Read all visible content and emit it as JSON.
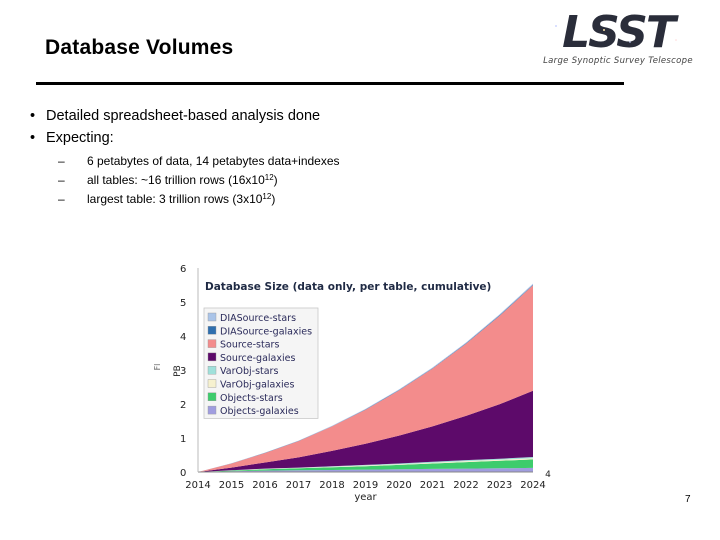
{
  "slide": {
    "title": "Database Volumes",
    "page_number": "7"
  },
  "logo": {
    "text": "LSST",
    "subtitle": "Large Synoptic Survey Telescope"
  },
  "bullets": [
    {
      "marker": "•",
      "text": "Detailed spreadsheet-based analysis done"
    },
    {
      "marker": "•",
      "text": "Expecting:"
    }
  ],
  "sub_bullets": [
    {
      "marker": "–",
      "text_a": "6 petabytes of data, 14 petabytes data+indexes",
      "sup": "",
      "text_b": ""
    },
    {
      "marker": "–",
      "text_a": "all tables: ~16 trillion rows (16x10",
      "sup": "12",
      "text_b": ")"
    },
    {
      "marker": "–",
      "text_a": "largest table: 3 trillion rows (3x10",
      "sup": "12",
      "text_b": ")"
    }
  ],
  "chart_data": {
    "type": "area",
    "stacked": true,
    "title": "Database Size (data only, per table, cumulative)",
    "xlabel": "year",
    "ylabel": "PB",
    "y_unit_fragment": "Fl",
    "right_edge_label": "4",
    "xlim": [
      2014,
      2024
    ],
    "ylim": [
      0,
      6
    ],
    "x": [
      2014,
      2015,
      2016,
      2017,
      2018,
      2019,
      2020,
      2021,
      2022,
      2023,
      2024
    ],
    "x_tick_labels": [
      "2014",
      "2015",
      "2016",
      "2017",
      "2018",
      "2019",
      "2020",
      "2021",
      "2022",
      "2023",
      "2024"
    ],
    "y_ticks": [
      0,
      1,
      2,
      3,
      4,
      5,
      6
    ],
    "legend_position": "top-left",
    "colors": {
      "DIASource-stars": "#aac4e8",
      "DIASource-galaxies": "#2f6fae",
      "Source-stars": "#f38c8c",
      "Source-galaxies": "#5d0a6a",
      "VarObj-stars": "#9fe0da",
      "VarObj-galaxies": "#f6f1cf",
      "Objects-stars": "#3dcc6c",
      "Objects-galaxies": "#a09ddf"
    },
    "series": [
      {
        "name": "Objects-galaxies",
        "values": [
          0.0,
          0.02,
          0.04,
          0.05,
          0.06,
          0.07,
          0.08,
          0.09,
          0.1,
          0.11,
          0.12
        ]
      },
      {
        "name": "Objects-stars",
        "values": [
          0.0,
          0.02,
          0.04,
          0.06,
          0.08,
          0.1,
          0.13,
          0.16,
          0.19,
          0.22,
          0.25
        ]
      },
      {
        "name": "VarObj-galaxies",
        "values": [
          0.0,
          0.005,
          0.01,
          0.01,
          0.015,
          0.02,
          0.02,
          0.025,
          0.03,
          0.03,
          0.035
        ]
      },
      {
        "name": "VarObj-stars",
        "values": [
          0.0,
          0.005,
          0.01,
          0.01,
          0.015,
          0.02,
          0.02,
          0.025,
          0.03,
          0.03,
          0.035
        ]
      },
      {
        "name": "Source-galaxies",
        "values": [
          0.0,
          0.08,
          0.18,
          0.3,
          0.45,
          0.62,
          0.82,
          1.04,
          1.3,
          1.6,
          1.95
        ]
      },
      {
        "name": "Source-stars",
        "values": [
          0.0,
          0.12,
          0.28,
          0.48,
          0.72,
          1.0,
          1.33,
          1.7,
          2.12,
          2.6,
          3.1
        ]
      },
      {
        "name": "DIASource-galaxies",
        "values": [
          0.0,
          0.002,
          0.004,
          0.006,
          0.008,
          0.01,
          0.012,
          0.014,
          0.016,
          0.018,
          0.02
        ]
      },
      {
        "name": "DIASource-stars",
        "values": [
          0.0,
          0.003,
          0.006,
          0.009,
          0.012,
          0.015,
          0.018,
          0.021,
          0.024,
          0.027,
          0.03
        ]
      }
    ],
    "legend_order": [
      "DIASource-stars",
      "DIASource-galaxies",
      "Source-stars",
      "Source-galaxies",
      "VarObj-stars",
      "VarObj-galaxies",
      "Objects-stars",
      "Objects-galaxies"
    ]
  }
}
